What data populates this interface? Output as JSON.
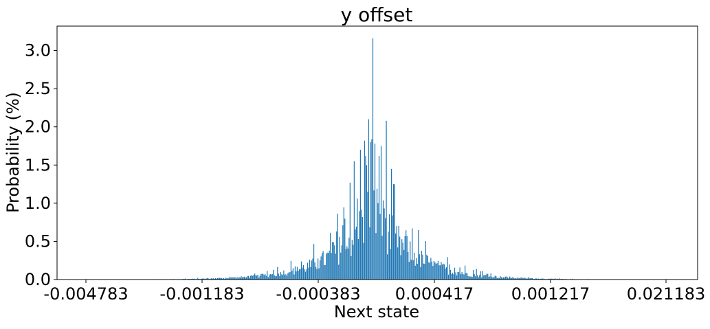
{
  "chart_data": {
    "type": "bar",
    "title": "y offset",
    "xlabel": "Next state",
    "ylabel": "Probability (%)",
    "ylim": [
      0,
      3.32
    ],
    "yticks": [
      0.0,
      0.5,
      1.0,
      1.5,
      2.0,
      2.5,
      3.0
    ],
    "ytick_labels": [
      "0.0",
      "0.5",
      "1.0",
      "1.5",
      "2.0",
      "2.5",
      "3.0"
    ],
    "xtick_labels": [
      "-0.004783",
      "-0.001183",
      "-0.000383",
      "0.000417",
      "0.001217",
      "0.021183"
    ],
    "grid": false,
    "bar_color": "#1f77b4",
    "num_bars": 561,
    "peak_value": 3.16,
    "center_spike_values": [
      3.16,
      2.1,
      2.08,
      1.82,
      1.8,
      1.78,
      1.75,
      1.7,
      1.62,
      1.55,
      1.5,
      1.45,
      1.27
    ],
    "values_note_free": true
  }
}
